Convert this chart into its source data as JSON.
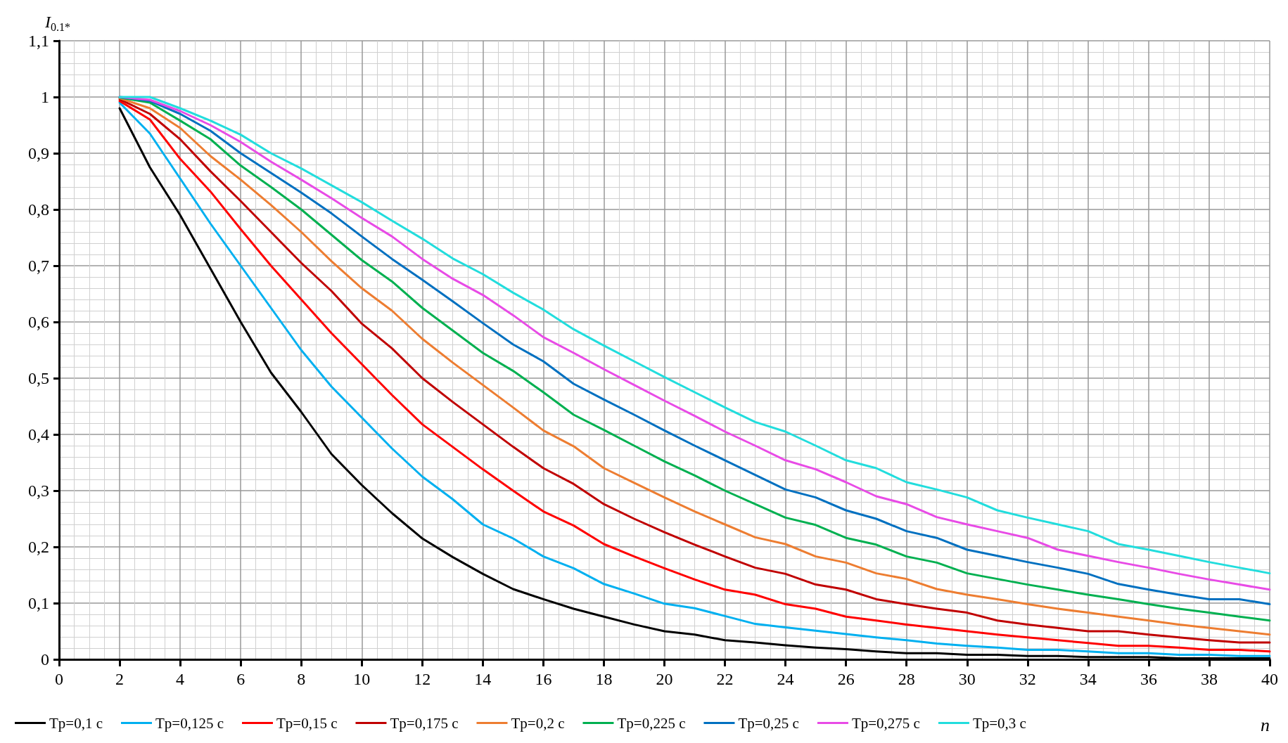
{
  "chart_data": {
    "type": "line",
    "ylabel": "I$_{0.1*}$",
    "xlabel": "n",
    "x": [
      2,
      3,
      4,
      5,
      6,
      7,
      8,
      9,
      10,
      11,
      12,
      13,
      14,
      15,
      16,
      17,
      18,
      19,
      20,
      21,
      22,
      23,
      24,
      25,
      26,
      27,
      28,
      29,
      30,
      31,
      32,
      33,
      34,
      35,
      36,
      37,
      38,
      39,
      40
    ],
    "xlim": [
      0,
      40
    ],
    "xticks": [
      0,
      2,
      4,
      6,
      8,
      10,
      12,
      14,
      16,
      18,
      20,
      22,
      24,
      26,
      28,
      30,
      32,
      34,
      36,
      38,
      40
    ],
    "ylim": [
      0,
      1.1
    ],
    "yticks": [
      0,
      {
        "value": 0.1,
        "label": "0,1"
      },
      {
        "value": 0.2,
        "label": "0,2"
      },
      {
        "value": 0.3,
        "label": "0,3"
      },
      {
        "value": 0.4,
        "label": "0,4"
      },
      {
        "value": 0.5,
        "label": "0,5"
      },
      {
        "value": 0.6,
        "label": "0,6"
      },
      {
        "value": 0.7,
        "label": "0,7"
      },
      {
        "value": 0.8,
        "label": "0,8"
      },
      {
        "value": 0.9,
        "label": "0,9"
      },
      1,
      {
        "value": 1.1,
        "label": "1,1"
      }
    ],
    "grid": true,
    "legend": "bottom",
    "marker": "none",
    "line_style": "solid",
    "series": [
      {
        "name": "Tp=0,1 c",
        "color": "#000000",
        "values": [
          0.98,
          0.875,
          0.79,
          0.695,
          0.6,
          0.51,
          0.44,
          0.365,
          0.31,
          0.26,
          0.215,
          0.182,
          0.152,
          0.125,
          0.107,
          0.09,
          0.076,
          0.062,
          0.05,
          0.044,
          0.034,
          0.03,
          0.025,
          0.021,
          0.018,
          0.014,
          0.011,
          0.011,
          0.008,
          0.008,
          0.006,
          0.006,
          0.004,
          0.004,
          0.004,
          0.002,
          0.002,
          0.002,
          0.002
        ]
      },
      {
        "name": "Tp=0,125 c",
        "color": "#00b0f0",
        "values": [
          0.99,
          0.935,
          0.855,
          0.775,
          0.7,
          0.625,
          0.55,
          0.485,
          0.43,
          0.375,
          0.325,
          0.285,
          0.24,
          0.215,
          0.183,
          0.162,
          0.134,
          0.117,
          0.099,
          0.091,
          0.077,
          0.063,
          0.057,
          0.051,
          0.045,
          0.039,
          0.034,
          0.028,
          0.024,
          0.021,
          0.017,
          0.017,
          0.014,
          0.011,
          0.011,
          0.008,
          0.008,
          0.006,
          0.006
        ]
      },
      {
        "name": "Tp=0,15 c",
        "color": "#ff0000",
        "values": [
          0.993,
          0.96,
          0.89,
          0.832,
          0.765,
          0.7,
          0.64,
          0.58,
          0.525,
          0.47,
          0.418,
          0.378,
          0.338,
          0.3,
          0.263,
          0.238,
          0.205,
          0.183,
          0.162,
          0.142,
          0.124,
          0.115,
          0.098,
          0.09,
          0.076,
          0.069,
          0.062,
          0.056,
          0.05,
          0.044,
          0.039,
          0.034,
          0.029,
          0.024,
          0.024,
          0.021,
          0.017,
          0.017,
          0.014
        ]
      },
      {
        "name": "Tp=0,175 c",
        "color": "#c00000",
        "values": [
          0.996,
          0.97,
          0.925,
          0.868,
          0.815,
          0.76,
          0.705,
          0.655,
          0.597,
          0.553,
          0.5,
          0.458,
          0.418,
          0.378,
          0.34,
          0.312,
          0.276,
          0.25,
          0.226,
          0.204,
          0.183,
          0.163,
          0.152,
          0.133,
          0.124,
          0.107,
          0.098,
          0.09,
          0.083,
          0.069,
          0.062,
          0.056,
          0.05,
          0.05,
          0.044,
          0.039,
          0.034,
          0.03,
          0.03
        ]
      },
      {
        "name": "Tp=0,2 c",
        "color": "#ed7d31",
        "values": [
          0.998,
          0.98,
          0.945,
          0.895,
          0.853,
          0.808,
          0.76,
          0.708,
          0.66,
          0.62,
          0.57,
          0.528,
          0.488,
          0.448,
          0.407,
          0.379,
          0.34,
          0.314,
          0.288,
          0.263,
          0.24,
          0.217,
          0.205,
          0.183,
          0.172,
          0.153,
          0.143,
          0.125,
          0.115,
          0.107,
          0.098,
          0.09,
          0.083,
          0.076,
          0.069,
          0.062,
          0.056,
          0.05,
          0.044
        ]
      },
      {
        "name": "Tp=0,225 c",
        "color": "#00b050",
        "values": [
          0.999,
          0.99,
          0.958,
          0.925,
          0.878,
          0.84,
          0.8,
          0.755,
          0.71,
          0.672,
          0.625,
          0.585,
          0.545,
          0.513,
          0.475,
          0.435,
          0.408,
          0.38,
          0.352,
          0.327,
          0.3,
          0.276,
          0.252,
          0.239,
          0.216,
          0.204,
          0.183,
          0.172,
          0.153,
          0.143,
          0.133,
          0.124,
          0.115,
          0.107,
          0.098,
          0.09,
          0.083,
          0.076,
          0.069
        ]
      },
      {
        "name": "Tp=0,25 c",
        "color": "#0070c0",
        "values": [
          1.0,
          0.993,
          0.97,
          0.94,
          0.9,
          0.865,
          0.83,
          0.793,
          0.752,
          0.712,
          0.675,
          0.637,
          0.598,
          0.56,
          0.53,
          0.49,
          0.462,
          0.435,
          0.407,
          0.38,
          0.354,
          0.328,
          0.302,
          0.288,
          0.265,
          0.25,
          0.228,
          0.216,
          0.195,
          0.184,
          0.173,
          0.163,
          0.152,
          0.134,
          0.124,
          0.115,
          0.107,
          0.107,
          0.098
        ]
      },
      {
        "name": "Tp=0,275 c",
        "color": "#e84be6",
        "values": [
          1.0,
          0.995,
          0.975,
          0.95,
          0.92,
          0.885,
          0.853,
          0.82,
          0.785,
          0.752,
          0.712,
          0.677,
          0.648,
          0.612,
          0.573,
          0.545,
          0.516,
          0.488,
          0.46,
          0.433,
          0.405,
          0.38,
          0.354,
          0.338,
          0.315,
          0.29,
          0.276,
          0.253,
          0.24,
          0.228,
          0.216,
          0.195,
          0.184,
          0.173,
          0.163,
          0.152,
          0.142,
          0.133,
          0.124
        ]
      },
      {
        "name": "Tp=0,3 c",
        "color": "#22dddd",
        "values": [
          1.0,
          1.0,
          0.98,
          0.958,
          0.933,
          0.9,
          0.873,
          0.843,
          0.813,
          0.78,
          0.748,
          0.713,
          0.685,
          0.652,
          0.622,
          0.587,
          0.558,
          0.53,
          0.502,
          0.475,
          0.448,
          0.422,
          0.405,
          0.38,
          0.354,
          0.34,
          0.315,
          0.302,
          0.288,
          0.265,
          0.252,
          0.24,
          0.228,
          0.205,
          0.195,
          0.184,
          0.173,
          0.163,
          0.153
        ]
      }
    ]
  }
}
